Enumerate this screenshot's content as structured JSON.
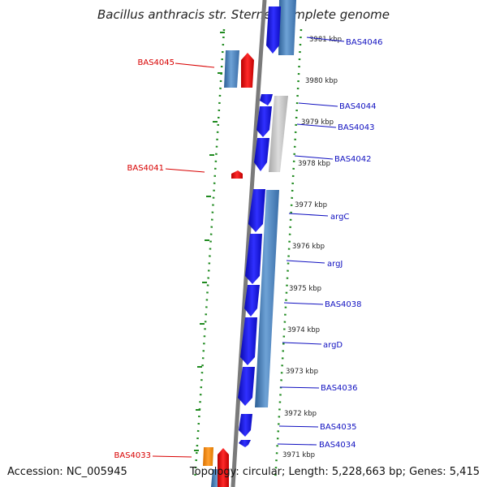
{
  "title": "Bacillus anthracis str. Sterne, complete genome",
  "footer": {
    "accession": "Accession: NC_005945",
    "topology": "Topology: circular; Length: 5,228,663 bp; Genes: 5,415"
  },
  "colors": {
    "backbone": "#8a8a8a",
    "forward_gene": "#1515e8",
    "reverse_gene": "#e40000",
    "rna_gene": "#f08a00",
    "gc_blue": "#4a84c0",
    "gc_gray": "#b8b8b8",
    "tick": "#1f8a1f",
    "label_right": "#1010c0",
    "label_left": "#d80000"
  },
  "ticks": [
    {
      "label": "3981 kbp"
    },
    {
      "label": "3980 kbp"
    },
    {
      "label": "3979 kbp"
    },
    {
      "label": "3978 kbp"
    },
    {
      "label": "3977 kbp"
    },
    {
      "label": "3976 kbp"
    },
    {
      "label": "3975 kbp"
    },
    {
      "label": "3974 kbp"
    },
    {
      "label": "3973 kbp"
    },
    {
      "label": "3972 kbp"
    },
    {
      "label": "3971 kbp"
    }
  ],
  "genes_right": [
    {
      "name": "BAS4046"
    },
    {
      "name": "BAS4044"
    },
    {
      "name": "BAS4043"
    },
    {
      "name": "BAS4042"
    },
    {
      "name": "argC"
    },
    {
      "name": "argJ"
    },
    {
      "name": "BAS4038"
    },
    {
      "name": "argD"
    },
    {
      "name": "BAS4036"
    },
    {
      "name": "BAS4035"
    },
    {
      "name": "BAS4034"
    }
  ],
  "genes_left": [
    {
      "name": "BAS4045"
    },
    {
      "name": "BAS4041"
    },
    {
      "name": "BAS4033"
    }
  ]
}
